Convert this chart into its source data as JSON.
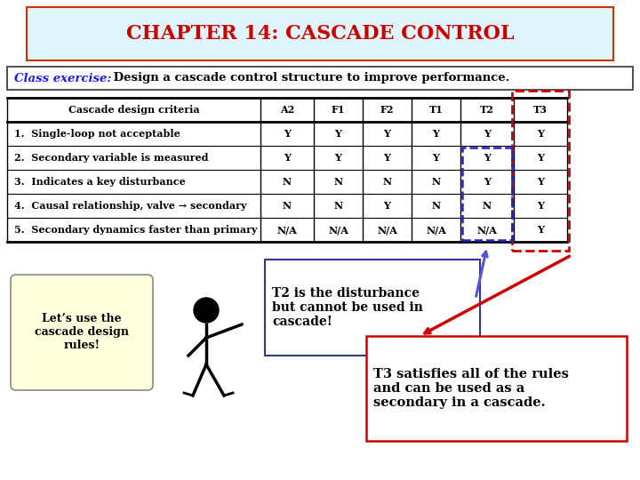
{
  "title": "CHAPTER 14: CASCADE CONTROL",
  "subtitle_bold": "Class exercise:",
  "subtitle_rest": " Design a cascade control structure to improve performance.",
  "table_header": [
    "Cascade design criteria",
    "A2",
    "F1",
    "F2",
    "T1",
    "T2",
    "T3"
  ],
  "table_rows": [
    [
      "1.  Single-loop not acceptable",
      "Y",
      "Y",
      "Y",
      "Y",
      "Y",
      "Y"
    ],
    [
      "2.  Secondary variable is measured",
      "Y",
      "Y",
      "Y",
      "Y",
      "Y",
      "Y"
    ],
    [
      "3.  Indicates a key disturbance",
      "N",
      "N",
      "N",
      "N",
      "Y",
      "Y"
    ],
    [
      "4.  Causal relationship, valve → secondary",
      "N",
      "N",
      "Y",
      "N",
      "N",
      "Y"
    ],
    [
      "5.  Secondary dynamics faster than primary",
      "N/A",
      "N/A",
      "N/A",
      "N/A",
      "N/A",
      "Y"
    ]
  ],
  "title_color": "#cc0000",
  "title_bg": "#dff5fc",
  "subtitle_color_bold": "#1a1aff",
  "subtitle_color_rest": "#000000",
  "box1_text": "Let’s use the\ncascade design\nrules!",
  "box2_text": "T2 is the disturbance\nbut cannot be used in\ncascade!",
  "box3_text": "T3 satisfies all of the rules\nand can be used as a\nsecondary in a cascade.",
  "bg_color": "#ffffff"
}
